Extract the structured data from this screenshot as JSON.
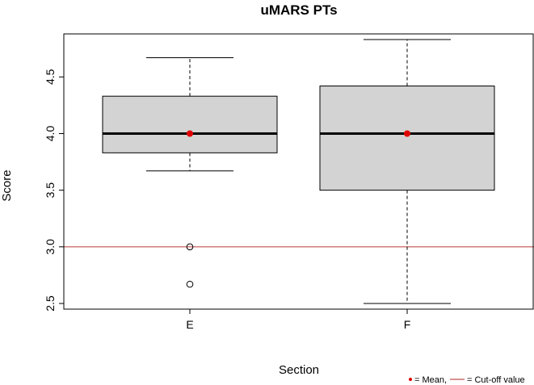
{
  "chart_data": {
    "type": "box",
    "title": "uMARS PTs",
    "xlabel": "Section",
    "ylabel": "Score",
    "ylim": [
      2.45,
      4.88
    ],
    "yticks": [
      2.5,
      3.0,
      3.5,
      4.0,
      4.5
    ],
    "ytick_labels": [
      "2.5",
      "3.0",
      "3.5",
      "4.0",
      "4.5"
    ],
    "categories": [
      "E",
      "F"
    ],
    "boxes": [
      {
        "category": "E",
        "whisker_low": 3.67,
        "q1": 3.83,
        "median": 4.0,
        "q3": 4.33,
        "whisker_high": 4.67,
        "mean": 4.0,
        "outliers": [
          3.0,
          2.67
        ]
      },
      {
        "category": "F",
        "whisker_low": 2.5,
        "q1": 3.5,
        "median": 4.0,
        "q3": 4.42,
        "whisker_high": 4.83,
        "mean": 4.0,
        "outliers": []
      }
    ],
    "cutoff": 3.0,
    "grid": false,
    "legend": {
      "placement": "bottom-right",
      "mean_label": "= Mean,",
      "cutoff_label": "= Cut-off value"
    },
    "colors": {
      "box_fill": "#d3d3d3",
      "mean": "#e00000",
      "cutoff": "#c0504d",
      "stroke": "#000000"
    }
  }
}
